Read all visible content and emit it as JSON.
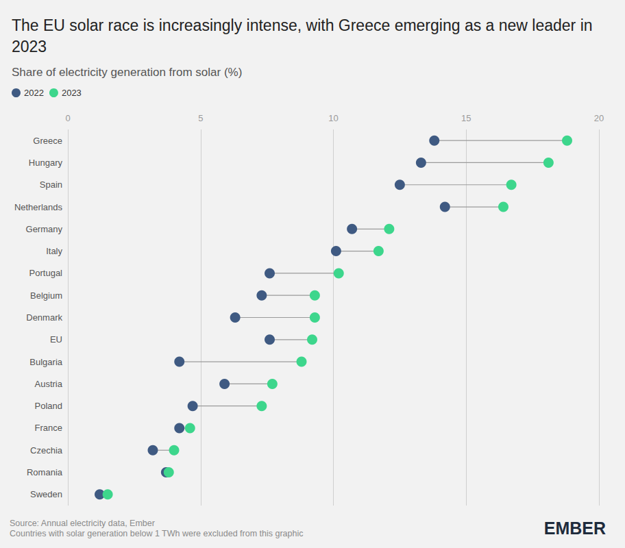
{
  "chart_data": {
    "type": "dumbbell",
    "title": "The EU solar race is increasingly intense, with Greece emerging as a new leader in 2023",
    "subtitle": "Share of electricity generation from solar (%)",
    "categories": [
      "Greece",
      "Hungary",
      "Spain",
      "Netherlands",
      "Germany",
      "Italy",
      "Portugal",
      "Belgium",
      "Denmark",
      "EU",
      "Bulgaria",
      "Austria",
      "Poland",
      "France",
      "Czechia",
      "Romania",
      "Sweden"
    ],
    "series": [
      {
        "name": "2022",
        "color": "#3f5a82",
        "values": [
          13.8,
          13.3,
          12.5,
          14.2,
          10.7,
          10.1,
          7.6,
          7.3,
          6.3,
          7.6,
          4.2,
          5.9,
          4.7,
          4.2,
          3.2,
          3.7,
          1.2
        ]
      },
      {
        "name": "2023",
        "color": "#3dd68c",
        "values": [
          18.8,
          18.1,
          16.7,
          16.4,
          12.1,
          11.7,
          10.2,
          9.3,
          9.3,
          9.2,
          8.8,
          7.7,
          7.3,
          4.6,
          4.0,
          3.8,
          1.5
        ]
      }
    ],
    "xlim": [
      0,
      20
    ],
    "xticks": [
      0,
      5,
      10,
      15,
      20
    ],
    "grid": true,
    "orientation": "horizontal",
    "legend": "top-left",
    "marker": "circle",
    "notes": [
      "Source: Annual electricity data, Ember",
      "Countries with solar generation below 1 TWh were excluded from this graphic"
    ],
    "logo": "EMBER"
  }
}
